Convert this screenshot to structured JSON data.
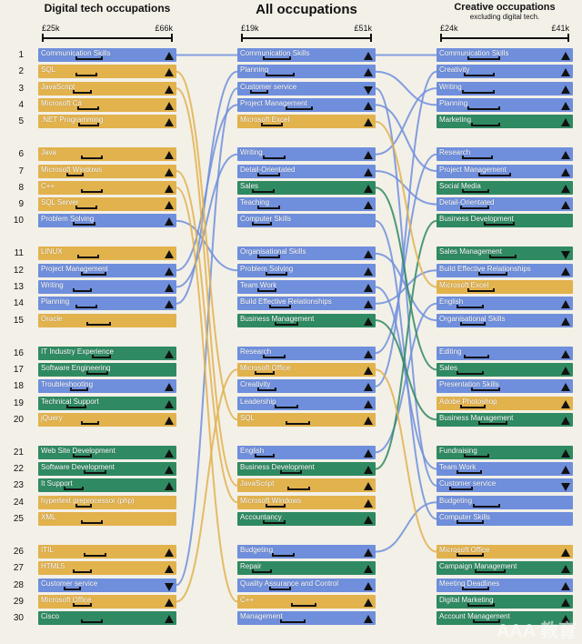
{
  "colors": {
    "blue": "#6f8fdc",
    "gold": "#e2b24d",
    "green": "#2f8a62",
    "background": "#f3f0e8"
  },
  "columns": [
    {
      "title": "Digital tech occupations",
      "subtitle": "",
      "min_label": "£25k",
      "max_label": "£66k"
    },
    {
      "title": "All occupations",
      "subtitle": "",
      "min_label": "£19k",
      "max_label": "£51k"
    },
    {
      "title": "Creative occupations",
      "subtitle": "excluding digital tech.",
      "min_label": "£24k",
      "max_label": "£41k"
    }
  ],
  "row_numbers": [
    "1",
    "2",
    "3",
    "4",
    "5",
    "6",
    "7",
    "8",
    "9",
    "10",
    "11",
    "12",
    "13",
    "14",
    "15",
    "16",
    "17",
    "18",
    "19",
    "20",
    "21",
    "22",
    "23",
    "24",
    "25",
    "26",
    "27",
    "28",
    "29",
    "30"
  ],
  "digital": [
    {
      "label": "Communication Skills",
      "color": "blue",
      "trend": "up",
      "range": [
        0.3,
        0.55
      ]
    },
    {
      "label": "SQL",
      "color": "gold",
      "trend": "up",
      "range": [
        0.3,
        0.5
      ]
    },
    {
      "label": "JavaScript",
      "color": "gold",
      "trend": "up",
      "range": [
        0.28,
        0.45
      ]
    },
    {
      "label": "Microsoft C#",
      "color": "gold",
      "trend": "up",
      "range": [
        0.32,
        0.52
      ]
    },
    {
      "label": ".NET Programming",
      "color": "gold",
      "trend": "up",
      "range": [
        0.33,
        0.52
      ]
    },
    {
      "label": "Java",
      "color": "gold",
      "trend": "up",
      "range": [
        0.35,
        0.55
      ]
    },
    {
      "label": "Microsoft Windows",
      "color": "gold",
      "trend": "up",
      "range": [
        0.22,
        0.38
      ]
    },
    {
      "label": "C++",
      "color": "gold",
      "trend": "up",
      "range": [
        0.35,
        0.55
      ]
    },
    {
      "label": "SQL Server",
      "color": "gold",
      "trend": "up",
      "range": [
        0.3,
        0.5
      ]
    },
    {
      "label": "Problem Solving",
      "color": "blue",
      "trend": "up",
      "range": [
        0.28,
        0.48
      ]
    },
    {
      "label": "LINUX",
      "color": "gold",
      "trend": "up",
      "range": [
        0.32,
        0.52
      ]
    },
    {
      "label": "Project Management",
      "color": "blue",
      "trend": "up",
      "range": [
        0.35,
        0.58
      ]
    },
    {
      "label": "Writing",
      "color": "blue",
      "trend": "up",
      "range": [
        0.28,
        0.45
      ]
    },
    {
      "label": "Planning",
      "color": "blue",
      "trend": "up",
      "range": [
        0.3,
        0.5
      ]
    },
    {
      "label": "Oracle",
      "color": "gold",
      "trend": "none",
      "range": [
        0.4,
        0.62
      ]
    },
    {
      "label": "IT Industry Experience",
      "color": "green",
      "trend": "up",
      "range": [
        0.45,
        0.62
      ]
    },
    {
      "label": "Software Engineering",
      "color": "green",
      "trend": "none",
      "range": [
        0.4,
        0.6
      ]
    },
    {
      "label": "Troubleshooting",
      "color": "blue",
      "trend": "up",
      "range": [
        0.25,
        0.42
      ]
    },
    {
      "label": "Technical Support",
      "color": "green",
      "trend": "up",
      "range": [
        0.22,
        0.4
      ]
    },
    {
      "label": "jQuery",
      "color": "gold",
      "trend": "up",
      "range": [
        0.35,
        0.52
      ]
    },
    {
      "label": "Web Site Development",
      "color": "green",
      "trend": "up",
      "range": [
        0.28,
        0.45
      ]
    },
    {
      "label": "Software Development",
      "color": "green",
      "trend": "up",
      "range": [
        0.38,
        0.58
      ]
    },
    {
      "label": "It Support",
      "color": "green",
      "trend": "up",
      "range": [
        0.2,
        0.38
      ]
    },
    {
      "label": "hypertext preprocessor (php)",
      "color": "gold",
      "trend": "none",
      "range": [
        0.3,
        0.45
      ]
    },
    {
      "label": "XML",
      "color": "gold",
      "trend": "none",
      "range": [
        0.35,
        0.55
      ]
    },
    {
      "label": "ITIL",
      "color": "gold",
      "trend": "up",
      "range": [
        0.38,
        0.58
      ]
    },
    {
      "label": "HTML5",
      "color": "gold",
      "trend": "up",
      "range": [
        0.28,
        0.45
      ]
    },
    {
      "label": "Customer service",
      "color": "blue",
      "trend": "down",
      "range": [
        0.2,
        0.35
      ]
    },
    {
      "label": "Microsoft Office",
      "color": "gold",
      "trend": "up",
      "range": [
        0.28,
        0.45
      ]
    },
    {
      "label": "Cisco",
      "color": "green",
      "trend": "up",
      "range": [
        0.35,
        0.55
      ]
    }
  ],
  "all": [
    {
      "label": "Communication Skills",
      "color": "blue",
      "trend": "up",
      "range": [
        0.2,
        0.45
      ]
    },
    {
      "label": "Planning",
      "color": "blue",
      "trend": "up",
      "range": [
        0.22,
        0.48
      ]
    },
    {
      "label": "Customer service",
      "color": "blue",
      "trend": "down",
      "range": [
        0.08,
        0.25
      ]
    },
    {
      "label": "Project Management",
      "color": "blue",
      "trend": "up",
      "range": [
        0.4,
        0.65
      ]
    },
    {
      "label": "Microsoft Excel",
      "color": "gold",
      "trend": "up",
      "range": [
        0.18,
        0.38
      ]
    },
    {
      "label": "Writing",
      "color": "blue",
      "trend": "up",
      "range": [
        0.2,
        0.4
      ]
    },
    {
      "label": "Detail-Orientated",
      "color": "blue",
      "trend": "up",
      "range": [
        0.15,
        0.35
      ]
    },
    {
      "label": "Sales",
      "color": "green",
      "trend": "up",
      "range": [
        0.1,
        0.3
      ]
    },
    {
      "label": "Teaching",
      "color": "blue",
      "trend": "up",
      "range": [
        0.15,
        0.35
      ]
    },
    {
      "label": "Computer Skills",
      "color": "blue",
      "trend": "none",
      "range": [
        0.1,
        0.28
      ]
    },
    {
      "label": "Organisational Skills",
      "color": "blue",
      "trend": "up",
      "range": [
        0.15,
        0.35
      ]
    },
    {
      "label": "Problem Solving",
      "color": "blue",
      "trend": "up",
      "range": [
        0.22,
        0.42
      ]
    },
    {
      "label": "Team Work",
      "color": "blue",
      "trend": "up",
      "range": [
        0.15,
        0.32
      ]
    },
    {
      "label": "Build Effective Relationships",
      "color": "blue",
      "trend": "up",
      "range": [
        0.25,
        0.45
      ]
    },
    {
      "label": "Business Management",
      "color": "green",
      "trend": "up",
      "range": [
        0.3,
        0.52
      ]
    },
    {
      "label": "Research",
      "color": "blue",
      "trend": "up",
      "range": [
        0.2,
        0.4
      ]
    },
    {
      "label": "Microsoft Office",
      "color": "gold",
      "trend": "up",
      "range": [
        0.12,
        0.3
      ]
    },
    {
      "label": "Creativity",
      "color": "blue",
      "trend": "up",
      "range": [
        0.15,
        0.32
      ]
    },
    {
      "label": "Leadership",
      "color": "blue",
      "trend": "up",
      "range": [
        0.3,
        0.52
      ]
    },
    {
      "label": "SQL",
      "color": "gold",
      "trend": "up",
      "range": [
        0.4,
        0.62
      ]
    },
    {
      "label": "English",
      "color": "blue",
      "trend": "up",
      "range": [
        0.12,
        0.3
      ]
    },
    {
      "label": "Business Development",
      "color": "green",
      "trend": "up",
      "range": [
        0.35,
        0.55
      ]
    },
    {
      "label": "JavaScript",
      "color": "gold",
      "trend": "up",
      "range": [
        0.42,
        0.62
      ]
    },
    {
      "label": "Microsoft Windows",
      "color": "gold",
      "trend": "up",
      "range": [
        0.22,
        0.4
      ]
    },
    {
      "label": "Accountancy",
      "color": "green",
      "trend": "up",
      "range": [
        0.2,
        0.4
      ]
    },
    {
      "label": "Budgeting",
      "color": "blue",
      "trend": "up",
      "range": [
        0.28,
        0.48
      ]
    },
    {
      "label": "Repair",
      "color": "green",
      "trend": "up",
      "range": [
        0.1,
        0.28
      ]
    },
    {
      "label": "Quality Assurance and Control",
      "color": "blue",
      "trend": "up",
      "range": [
        0.25,
        0.45
      ]
    },
    {
      "label": "C++",
      "color": "gold",
      "trend": "up",
      "range": [
        0.45,
        0.68
      ]
    },
    {
      "label": "Management",
      "color": "blue",
      "trend": "up",
      "range": [
        0.35,
        0.58
      ]
    }
  ],
  "creative": [
    {
      "label": "Communication Skills",
      "color": "blue",
      "trend": "up",
      "range": [
        0.25,
        0.55
      ]
    },
    {
      "label": "Creativity",
      "color": "blue",
      "trend": "up",
      "range": [
        0.22,
        0.5
      ]
    },
    {
      "label": "Writing",
      "color": "blue",
      "trend": "up",
      "range": [
        0.2,
        0.5
      ]
    },
    {
      "label": "Planning",
      "color": "blue",
      "trend": "up",
      "range": [
        0.25,
        0.55
      ]
    },
    {
      "label": "Marketing",
      "color": "green",
      "trend": "up",
      "range": [
        0.28,
        0.55
      ]
    },
    {
      "label": "Research",
      "color": "blue",
      "trend": "up",
      "range": [
        0.2,
        0.48
      ]
    },
    {
      "label": "Project Management",
      "color": "blue",
      "trend": "up",
      "range": [
        0.35,
        0.65
      ]
    },
    {
      "label": "Social Media",
      "color": "green",
      "trend": "up",
      "range": [
        0.2,
        0.45
      ]
    },
    {
      "label": "Detail-Orientated",
      "color": "blue",
      "trend": "up",
      "range": [
        0.18,
        0.45
      ]
    },
    {
      "label": "Business Development",
      "color": "green",
      "trend": "none",
      "range": [
        0.4,
        0.68
      ]
    },
    {
      "label": "Sales Management",
      "color": "green",
      "trend": "down",
      "range": [
        0.45,
        0.7
      ]
    },
    {
      "label": "Build Effective Relationships",
      "color": "blue",
      "trend": "up",
      "range": [
        0.35,
        0.62
      ]
    },
    {
      "label": "Microsoft Excel",
      "color": "gold",
      "trend": "none",
      "range": [
        0.25,
        0.5
      ]
    },
    {
      "label": "English",
      "color": "blue",
      "trend": "up",
      "range": [
        0.15,
        0.4
      ]
    },
    {
      "label": "Organisational Skills",
      "color": "blue",
      "trend": "up",
      "range": [
        0.18,
        0.42
      ]
    },
    {
      "label": "Editing",
      "color": "blue",
      "trend": "up",
      "range": [
        0.22,
        0.45
      ]
    },
    {
      "label": "Sales",
      "color": "green",
      "trend": "up",
      "range": [
        0.15,
        0.4
      ]
    },
    {
      "label": "Presentation Skills",
      "color": "blue",
      "trend": "up",
      "range": [
        0.28,
        0.55
      ]
    },
    {
      "label": "Adobe Photoshop",
      "color": "gold",
      "trend": "up",
      "range": [
        0.18,
        0.42
      ]
    },
    {
      "label": "Business Management",
      "color": "green",
      "trend": "up",
      "range": [
        0.35,
        0.62
      ]
    },
    {
      "label": "Fundraising",
      "color": "green",
      "trend": "up",
      "range": [
        0.22,
        0.45
      ]
    },
    {
      "label": "Team Work",
      "color": "blue",
      "trend": "up",
      "range": [
        0.15,
        0.38
      ]
    },
    {
      "label": "Customer service",
      "color": "blue",
      "trend": "down",
      "range": [
        0.08,
        0.3
      ]
    },
    {
      "label": "Budgeting",
      "color": "blue",
      "trend": "none",
      "range": [
        0.3,
        0.55
      ]
    },
    {
      "label": "Computer Skills",
      "color": "blue",
      "trend": "none",
      "range": [
        0.15,
        0.4
      ]
    },
    {
      "label": "Microsoft Office",
      "color": "gold",
      "trend": "up",
      "range": [
        0.15,
        0.4
      ]
    },
    {
      "label": "Campaign Management",
      "color": "green",
      "trend": "up",
      "range": [
        0.32,
        0.6
      ]
    },
    {
      "label": "Meeting Deadlines",
      "color": "blue",
      "trend": "up",
      "range": [
        0.2,
        0.45
      ]
    },
    {
      "label": "Digital Marketing",
      "color": "green",
      "trend": "up",
      "range": [
        0.25,
        0.5
      ]
    },
    {
      "label": "Account Management",
      "color": "green",
      "trend": "up",
      "range": [
        0.3,
        0.55
      ]
    }
  ],
  "links": [
    {
      "from": "digital",
      "to": "all",
      "a": 1,
      "b": 1,
      "color": "blue"
    },
    {
      "from": "digital",
      "to": "all",
      "a": 14,
      "b": 2,
      "color": "blue"
    },
    {
      "from": "digital",
      "to": "all",
      "a": 13,
      "b": 6,
      "color": "blue"
    },
    {
      "from": "digital",
      "to": "all",
      "a": 12,
      "b": 4,
      "color": "blue"
    },
    {
      "from": "digital",
      "to": "all",
      "a": 10,
      "b": 12,
      "color": "blue"
    },
    {
      "from": "digital",
      "to": "all",
      "a": 28,
      "b": 3,
      "color": "blue"
    },
    {
      "from": "digital",
      "to": "all",
      "a": 29,
      "b": 17,
      "color": "gold"
    },
    {
      "from": "digital",
      "to": "all",
      "a": 2,
      "b": 20,
      "color": "gold"
    },
    {
      "from": "digital",
      "to": "all",
      "a": 3,
      "b": 23,
      "color": "gold"
    },
    {
      "from": "digital",
      "to": "all",
      "a": 7,
      "b": 24,
      "color": "gold"
    },
    {
      "from": "digital",
      "to": "all",
      "a": 8,
      "b": 29,
      "color": "gold"
    },
    {
      "from": "all",
      "to": "creative",
      "a": 1,
      "b": 1,
      "color": "blue"
    },
    {
      "from": "all",
      "to": "creative",
      "a": 2,
      "b": 4,
      "color": "blue"
    },
    {
      "from": "all",
      "to": "creative",
      "a": 6,
      "b": 3,
      "color": "blue"
    },
    {
      "from": "all",
      "to": "creative",
      "a": 4,
      "b": 7,
      "color": "blue"
    },
    {
      "from": "all",
      "to": "creative",
      "a": 7,
      "b": 9,
      "color": "blue"
    },
    {
      "from": "all",
      "to": "creative",
      "a": 16,
      "b": 6,
      "color": "blue"
    },
    {
      "from": "all",
      "to": "creative",
      "a": 18,
      "b": 2,
      "color": "blue"
    },
    {
      "from": "all",
      "to": "creative",
      "a": 21,
      "b": 14,
      "color": "blue"
    },
    {
      "from": "all",
      "to": "creative",
      "a": 11,
      "b": 15,
      "color": "blue"
    },
    {
      "from": "all",
      "to": "creative",
      "a": 14,
      "b": 12,
      "color": "blue"
    },
    {
      "from": "all",
      "to": "creative",
      "a": 3,
      "b": 23,
      "color": "blue"
    },
    {
      "from": "all",
      "to": "creative",
      "a": 13,
      "b": 22,
      "color": "blue"
    },
    {
      "from": "all",
      "to": "creative",
      "a": 10,
      "b": 25,
      "color": "blue"
    },
    {
      "from": "all",
      "to": "creative",
      "a": 26,
      "b": 24,
      "color": "blue"
    },
    {
      "from": "all",
      "to": "creative",
      "a": 8,
      "b": 17,
      "color": "green"
    },
    {
      "from": "all",
      "to": "creative",
      "a": 15,
      "b": 20,
      "color": "green"
    },
    {
      "from": "all",
      "to": "creative",
      "a": 22,
      "b": 10,
      "color": "green"
    },
    {
      "from": "all",
      "to": "creative",
      "a": 5,
      "b": 13,
      "color": "gold"
    },
    {
      "from": "all",
      "to": "creative",
      "a": 17,
      "b": 26,
      "color": "gold"
    }
  ],
  "watermark": "AAA 教育"
}
